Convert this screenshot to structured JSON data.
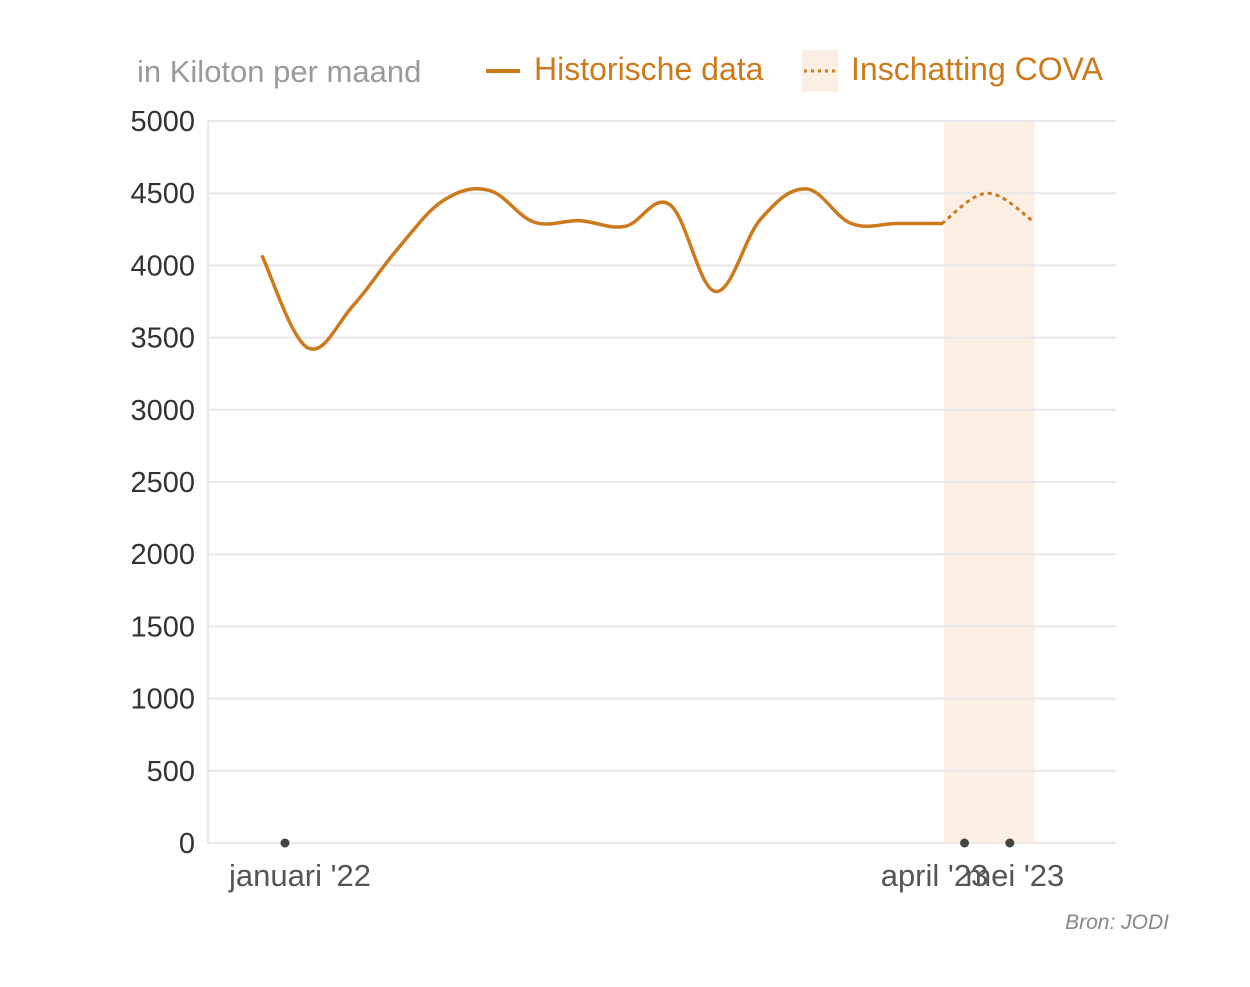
{
  "colors": {
    "line": "#cc7a1c",
    "estimate_band": "#fbeee2",
    "grid": "#e8e8e8",
    "axis_dot": "#444444"
  },
  "chart_data": {
    "type": "line",
    "unit_label": "in Kiloton per maand",
    "ylim": [
      0,
      5000
    ],
    "yticks": [
      0,
      500,
      1000,
      1500,
      2000,
      2500,
      3000,
      3500,
      4000,
      4500,
      5000
    ],
    "grid": true,
    "legend_placement": "top",
    "x_tick_labels": [
      {
        "label": "januari '22",
        "index": 0
      },
      {
        "label": "april '23",
        "index": 15
      },
      {
        "label": "mei '23",
        "index": 16
      }
    ],
    "series": [
      {
        "name": "Historische data",
        "style": "solid",
        "points": [
          {
            "index": -0.5,
            "value": 4060
          },
          {
            "index": 0.5,
            "value": 3430
          },
          {
            "index": 1.5,
            "value": 3720
          },
          {
            "index": 2.5,
            "value": 4120
          },
          {
            "index": 3.5,
            "value": 4450
          },
          {
            "index": 4.5,
            "value": 4520
          },
          {
            "index": 5.5,
            "value": 4300
          },
          {
            "index": 6.5,
            "value": 4310
          },
          {
            "index": 7.5,
            "value": 4270
          },
          {
            "index": 8.5,
            "value": 4420
          },
          {
            "index": 9.5,
            "value": 3820
          },
          {
            "index": 10.5,
            "value": 4320
          },
          {
            "index": 11.5,
            "value": 4530
          },
          {
            "index": 12.5,
            "value": 4290
          },
          {
            "index": 13.5,
            "value": 4290
          },
          {
            "index": 14.5,
            "value": 4290
          }
        ]
      },
      {
        "name": "Inschatting COVA",
        "style": "dotted",
        "points": [
          {
            "index": 14.5,
            "value": 4290
          },
          {
            "index": 15.5,
            "value": 4500
          },
          {
            "index": 16.5,
            "value": 4310
          }
        ]
      }
    ],
    "estimate_band": {
      "from_index": 14.55,
      "to_index": 16.55
    },
    "source": "Bron: JODI"
  }
}
